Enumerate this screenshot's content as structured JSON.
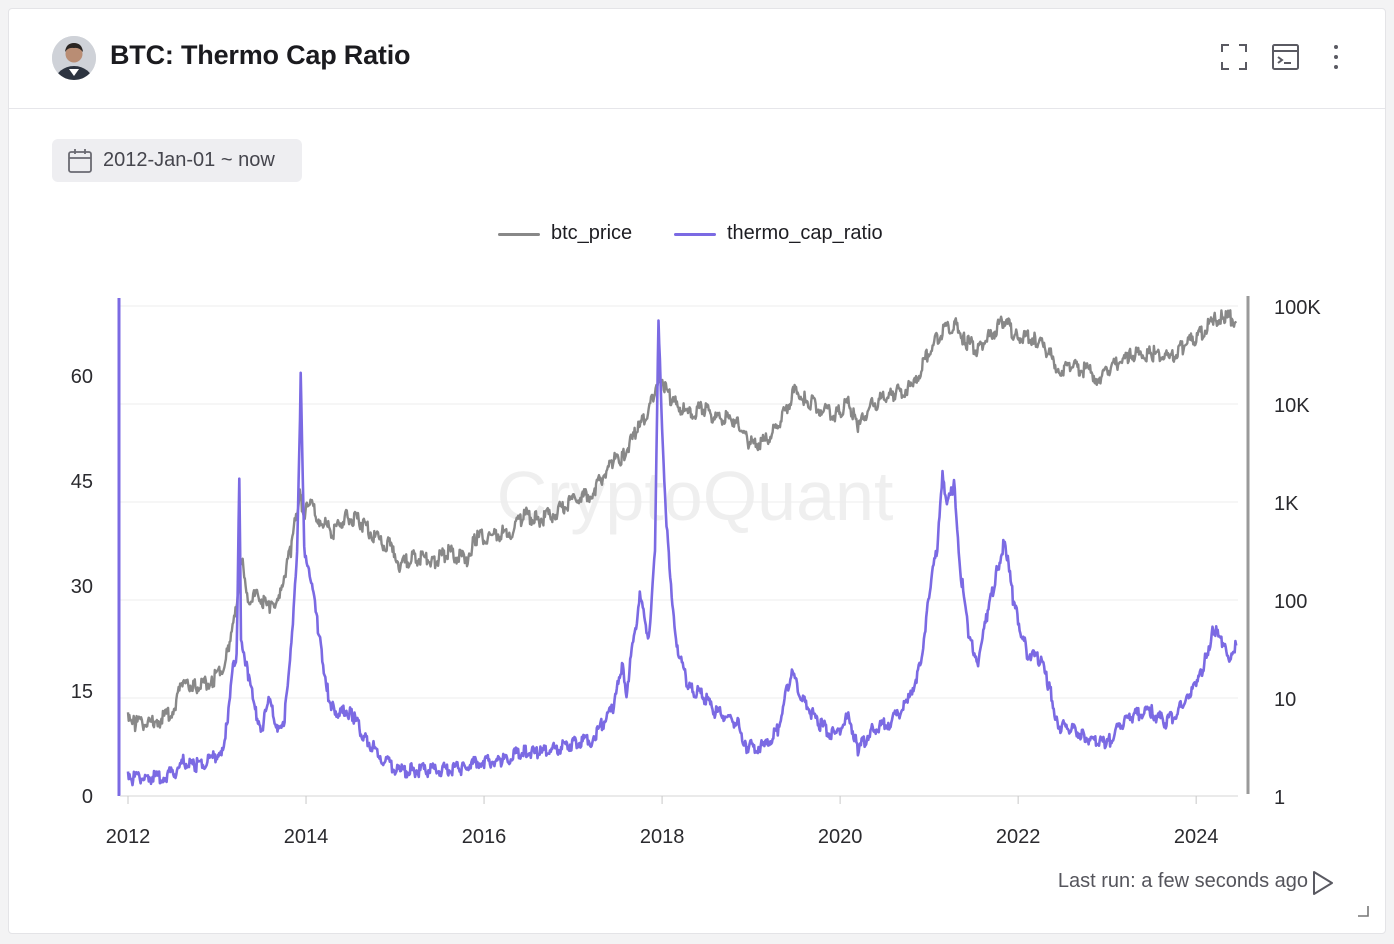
{
  "header": {
    "title": "BTC: Thermo Cap Ratio",
    "icons": [
      "avatar-photo",
      "fullscreen-icon",
      "terminal-icon",
      "more-vertical-icon"
    ]
  },
  "filter": {
    "date_range": "2012-Jan-01 ~ now",
    "icon": "calendar-icon"
  },
  "footer": {
    "last_run": "Last run: a few seconds ago",
    "run_icon": "play-icon"
  },
  "watermark": "CryptoQuant",
  "colors": {
    "btc_price": "#888888",
    "thermo_cap_ratio": "#7b6ae3",
    "axis": "#9a9a9a"
  },
  "chart_data": {
    "type": "line",
    "title": "BTC: Thermo Cap Ratio",
    "x_range": [
      2012.0,
      2024.47
    ],
    "x_ticks": [
      "2012",
      "2014",
      "2016",
      "2018",
      "2020",
      "2022",
      "2024"
    ],
    "y_left": {
      "label": "",
      "range": [
        0,
        70
      ],
      "ticks": [
        "0",
        "15",
        "30",
        "45",
        "60"
      ]
    },
    "y_right": {
      "label": "",
      "scale": "log",
      "range": [
        1,
        100000
      ],
      "ticks": [
        "1",
        "10",
        "100",
        "1K",
        "10K",
        "100K"
      ]
    },
    "legend_position": "top-center",
    "grid": true,
    "series": [
      {
        "name": "btc_price",
        "axis": "right",
        "points": [
          [
            2012.0,
            6.5
          ],
          [
            2012.08,
            5.0
          ],
          [
            2012.3,
            5.0
          ],
          [
            2012.5,
            6.8
          ],
          [
            2012.62,
            13.0
          ],
          [
            2012.75,
            12.0
          ],
          [
            2012.95,
            13.5
          ],
          [
            2013.1,
            22.0
          ],
          [
            2013.2,
            70.0
          ],
          [
            2013.28,
            230.0
          ],
          [
            2013.33,
            100.0
          ],
          [
            2013.5,
            95.0
          ],
          [
            2013.6,
            70.0
          ],
          [
            2013.72,
            120.0
          ],
          [
            2013.83,
            300.0
          ],
          [
            2013.93,
            1100.0
          ],
          [
            2013.97,
            700.0
          ],
          [
            2014.05,
            850.0
          ],
          [
            2014.15,
            600.0
          ],
          [
            2014.3,
            450.0
          ],
          [
            2014.45,
            640.0
          ],
          [
            2014.6,
            580.0
          ],
          [
            2014.8,
            380.0
          ],
          [
            2014.98,
            310.0
          ],
          [
            2015.05,
            200.0
          ],
          [
            2015.2,
            250.0
          ],
          [
            2015.45,
            230.0
          ],
          [
            2015.6,
            280.0
          ],
          [
            2015.8,
            230.0
          ],
          [
            2015.9,
            380.0
          ],
          [
            2016.1,
            420.0
          ],
          [
            2016.3,
            450.0
          ],
          [
            2016.45,
            680.0
          ],
          [
            2016.6,
            600.0
          ],
          [
            2016.8,
            700.0
          ],
          [
            2016.99,
            950.0
          ],
          [
            2017.2,
            1100.0
          ],
          [
            2017.45,
            2400.0
          ],
          [
            2017.55,
            2600.0
          ],
          [
            2017.7,
            4500.0
          ],
          [
            2017.85,
            7500.0
          ],
          [
            2017.97,
            19000.0
          ],
          [
            2018.1,
            10000.0
          ],
          [
            2018.3,
            7000.0
          ],
          [
            2018.45,
            8500.0
          ],
          [
            2018.6,
            6500.0
          ],
          [
            2018.85,
            6300.0
          ],
          [
            2018.97,
            3500.0
          ],
          [
            2019.15,
            3700.0
          ],
          [
            2019.3,
            5200.0
          ],
          [
            2019.48,
            12000.0
          ],
          [
            2019.6,
            10500.0
          ],
          [
            2019.8,
            8000.0
          ],
          [
            2019.95,
            7200.0
          ],
          [
            2020.1,
            9500.0
          ],
          [
            2020.2,
            5000.0
          ],
          [
            2020.35,
            9000.0
          ],
          [
            2020.6,
            11500.0
          ],
          [
            2020.82,
            13500.0
          ],
          [
            2020.98,
            29000.0
          ],
          [
            2021.15,
            50000.0
          ],
          [
            2021.3,
            60000.0
          ],
          [
            2021.4,
            40000.0
          ],
          [
            2021.55,
            33000.0
          ],
          [
            2021.7,
            47000.0
          ],
          [
            2021.85,
            65000.0
          ],
          [
            2021.97,
            46000.0
          ],
          [
            2022.2,
            42000.0
          ],
          [
            2022.35,
            30000.0
          ],
          [
            2022.45,
            20000.0
          ],
          [
            2022.6,
            22000.0
          ],
          [
            2022.8,
            19500.0
          ],
          [
            2022.9,
            16500.0
          ],
          [
            2023.05,
            22000.0
          ],
          [
            2023.25,
            28000.0
          ],
          [
            2023.5,
            30000.0
          ],
          [
            2023.7,
            26500.0
          ],
          [
            2023.85,
            35000.0
          ],
          [
            2024.0,
            43000.0
          ],
          [
            2024.2,
            65000.0
          ],
          [
            2024.3,
            70000.0
          ],
          [
            2024.45,
            67000.0
          ]
        ]
      },
      {
        "name": "thermo_cap_ratio",
        "axis": "left",
        "points": [
          [
            2012.0,
            3.0
          ],
          [
            2012.05,
            2.0
          ],
          [
            2012.2,
            2.2
          ],
          [
            2012.4,
            2.3
          ],
          [
            2012.55,
            3.0
          ],
          [
            2012.62,
            4.5
          ],
          [
            2012.75,
            3.8
          ],
          [
            2012.95,
            4.8
          ],
          [
            2013.05,
            6.0
          ],
          [
            2013.12,
            10.0
          ],
          [
            2013.18,
            18.0
          ],
          [
            2013.22,
            20.0
          ],
          [
            2013.25,
            44.0
          ],
          [
            2013.27,
            22.0
          ],
          [
            2013.35,
            17.0
          ],
          [
            2013.42,
            12.0
          ],
          [
            2013.5,
            9.0
          ],
          [
            2013.58,
            13.0
          ],
          [
            2013.68,
            9.5
          ],
          [
            2013.75,
            10.0
          ],
          [
            2013.82,
            18.0
          ],
          [
            2013.9,
            35.0
          ],
          [
            2013.94,
            59.0
          ],
          [
            2013.98,
            35.0
          ],
          [
            2014.05,
            31.0
          ],
          [
            2014.15,
            22.0
          ],
          [
            2014.25,
            14.0
          ],
          [
            2014.35,
            10.0
          ],
          [
            2014.42,
            12.0
          ],
          [
            2014.52,
            11.0
          ],
          [
            2014.65,
            8.0
          ],
          [
            2014.85,
            5.0
          ],
          [
            2015.05,
            3.0
          ],
          [
            2015.2,
            3.2
          ],
          [
            2015.5,
            3.2
          ],
          [
            2015.75,
            3.5
          ],
          [
            2015.95,
            4.5
          ],
          [
            2016.2,
            4.5
          ],
          [
            2016.45,
            6.0
          ],
          [
            2016.6,
            5.5
          ],
          [
            2016.99,
            7.0
          ],
          [
            2017.2,
            7.5
          ],
          [
            2017.45,
            12.0
          ],
          [
            2017.55,
            18.0
          ],
          [
            2017.6,
            14.5
          ],
          [
            2017.75,
            28.0
          ],
          [
            2017.85,
            22.0
          ],
          [
            2017.92,
            35.0
          ],
          [
            2017.96,
            67.0
          ],
          [
            2018.0,
            52.0
          ],
          [
            2018.05,
            38.0
          ],
          [
            2018.1,
            29.0
          ],
          [
            2018.18,
            20.0
          ],
          [
            2018.3,
            15.0
          ],
          [
            2018.45,
            14.0
          ],
          [
            2018.6,
            11.5
          ],
          [
            2018.85,
            10.0
          ],
          [
            2018.95,
            6.5
          ],
          [
            2019.15,
            6.5
          ],
          [
            2019.3,
            9.0
          ],
          [
            2019.45,
            17.0
          ],
          [
            2019.6,
            13.0
          ],
          [
            2019.75,
            10.0
          ],
          [
            2019.95,
            8.0
          ],
          [
            2020.1,
            11.0
          ],
          [
            2020.2,
            6.0
          ],
          [
            2020.35,
            9.0
          ],
          [
            2020.55,
            10.0
          ],
          [
            2020.75,
            12.5
          ],
          [
            2020.9,
            18.0
          ],
          [
            2021.0,
            28.0
          ],
          [
            2021.1,
            36.0
          ],
          [
            2021.15,
            46.0
          ],
          [
            2021.2,
            41.0
          ],
          [
            2021.28,
            44.0
          ],
          [
            2021.35,
            32.0
          ],
          [
            2021.45,
            22.0
          ],
          [
            2021.55,
            19.0
          ],
          [
            2021.65,
            25.0
          ],
          [
            2021.75,
            31.0
          ],
          [
            2021.85,
            36.0
          ],
          [
            2021.95,
            27.0
          ],
          [
            2022.1,
            20.0
          ],
          [
            2022.25,
            19.0
          ],
          [
            2022.35,
            15.0
          ],
          [
            2022.45,
            9.5
          ],
          [
            2022.6,
            9.0
          ],
          [
            2022.75,
            8.0
          ],
          [
            2022.9,
            7.0
          ],
          [
            2023.0,
            7.0
          ],
          [
            2023.15,
            9.5
          ],
          [
            2023.3,
            11.0
          ],
          [
            2023.5,
            11.5
          ],
          [
            2023.65,
            10.0
          ],
          [
            2023.8,
            11.5
          ],
          [
            2023.9,
            14.0
          ],
          [
            2024.0,
            15.0
          ],
          [
            2024.1,
            19.0
          ],
          [
            2024.2,
            23.5
          ],
          [
            2024.3,
            21.0
          ],
          [
            2024.38,
            19.5
          ],
          [
            2024.45,
            21.5
          ]
        ]
      }
    ]
  }
}
